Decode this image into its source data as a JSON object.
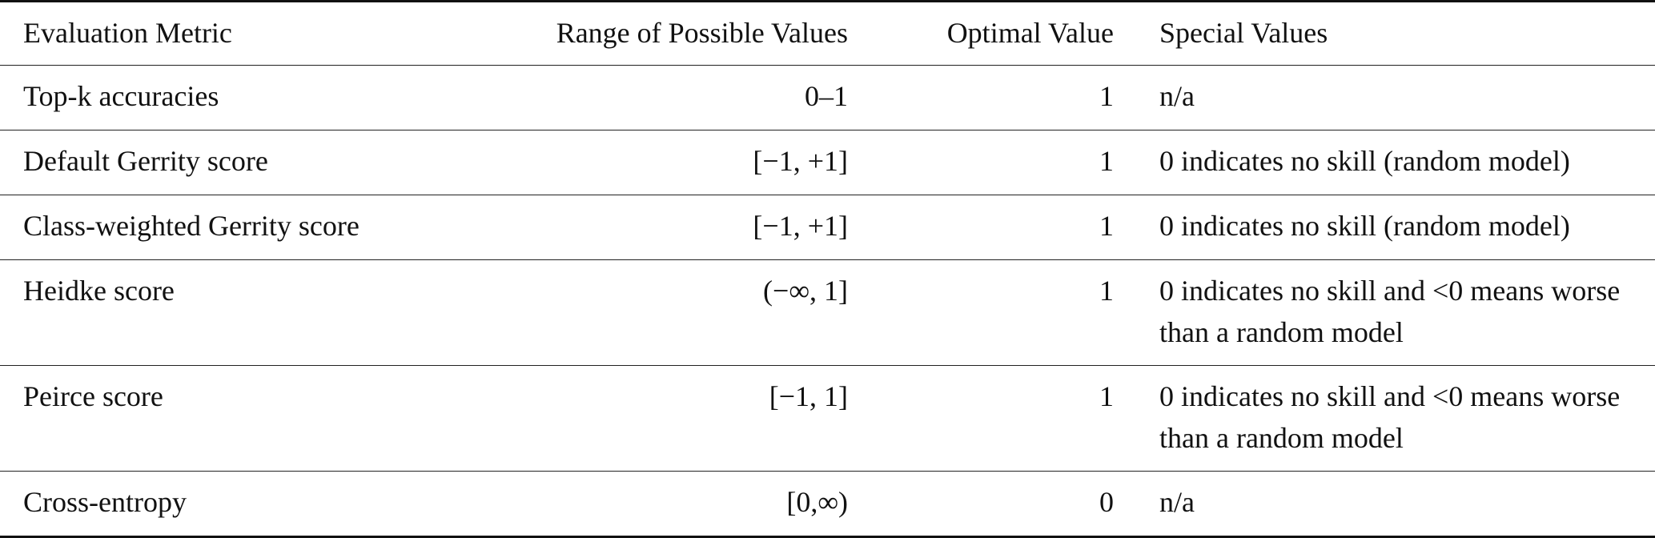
{
  "table": {
    "header": [
      "Evaluation Metric",
      "Range of Possible Values",
      "Optimal Value",
      "Special Values"
    ],
    "rows": [
      [
        "Top-k accuracies",
        "0–1",
        1,
        "n/a"
      ],
      [
        "Default Gerrity score",
        "[−1, +1]",
        1,
        "0 indicates no skill (random model)"
      ],
      [
        "Class-weighted Gerrity score",
        "[−1, +1]",
        1,
        "0 indicates no skill (random model)"
      ],
      [
        "Heidke score",
        "(−∞, 1]",
        1,
        "0 indicates no skill and <0 means worse than a random model"
      ],
      [
        "Peirce score",
        "[−1, 1]",
        1,
        "0 indicates no skill and <0 means worse than a random model"
      ],
      [
        "Cross-entropy",
        "[0,∞)",
        0,
        "n/a"
      ]
    ]
  }
}
